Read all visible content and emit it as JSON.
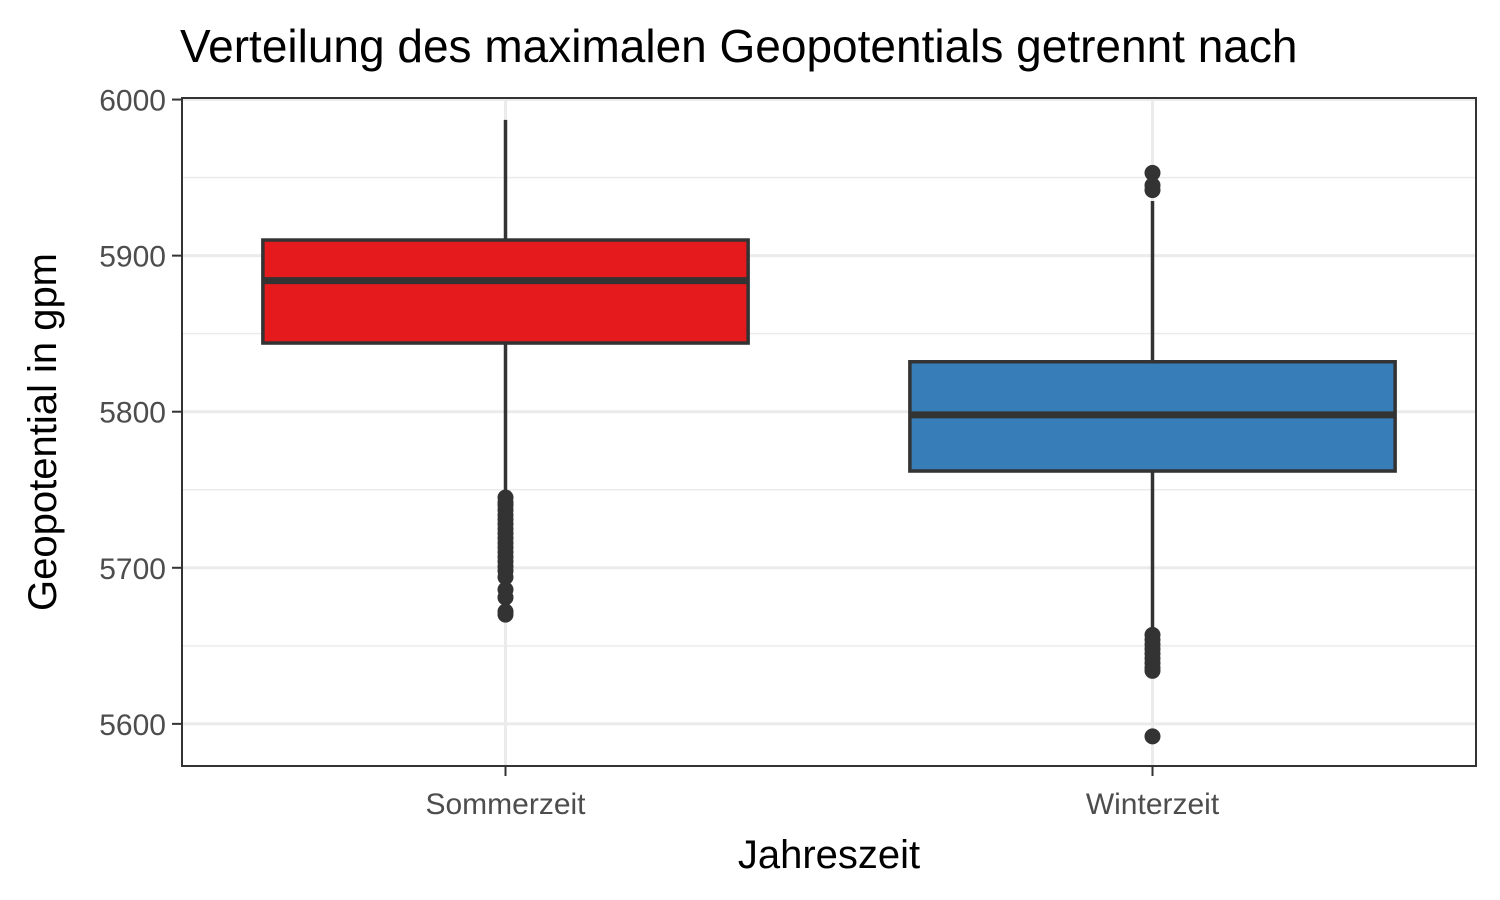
{
  "chart_data": {
    "type": "boxplot",
    "title": "Verteilung des maximalen Geopotentials getrennt nach",
    "xlabel": "Jahreszeit",
    "ylabel": "Geopotential in gpm",
    "ylim": [
      5573,
      6001
    ],
    "y_ticks": [
      5600,
      5700,
      5800,
      5900,
      6000
    ],
    "y_minor_ticks": [
      5650,
      5750,
      5850,
      5950
    ],
    "grid": true,
    "legend": "none",
    "categories": [
      "Sommerzeit",
      "Winterzeit"
    ],
    "boxes": [
      {
        "category": "Sommerzeit",
        "color": "#E41A1C",
        "whisker_low": 5746,
        "q1": 5844,
        "median": 5884,
        "q3": 5910,
        "whisker_high": 5987,
        "outliers": [
          5745,
          5742,
          5740,
          5737,
          5734,
          5731,
          5728,
          5725,
          5722,
          5719,
          5716,
          5713,
          5710,
          5707,
          5704,
          5701,
          5698,
          5694,
          5686,
          5681,
          5672,
          5670
        ]
      },
      {
        "category": "Winterzeit",
        "color": "#377EB8",
        "whisker_low": 5660,
        "q1": 5762,
        "median": 5798,
        "q3": 5832,
        "whisker_high": 5935,
        "outliers": [
          5953,
          5945,
          5942,
          5657,
          5654,
          5651,
          5648,
          5645,
          5642,
          5639,
          5636,
          5634,
          5592
        ]
      }
    ]
  }
}
